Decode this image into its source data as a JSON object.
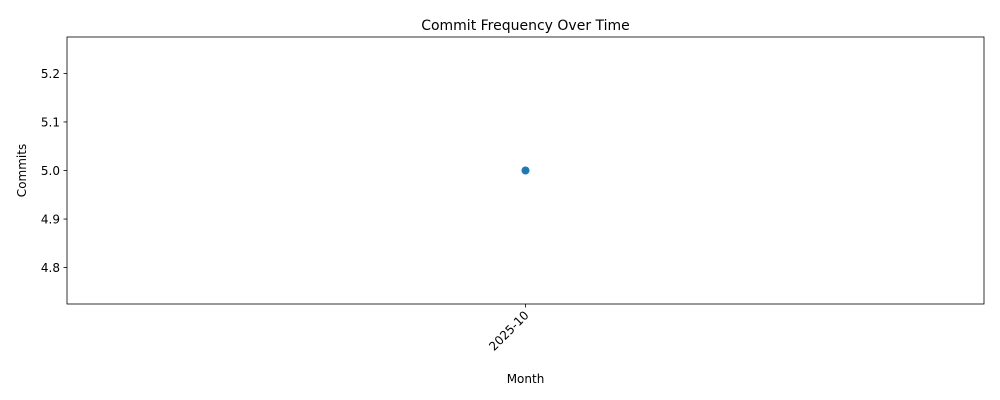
{
  "chart_data": {
    "type": "line",
    "title": "Commit Frequency Over Time",
    "xlabel": "Month",
    "ylabel": "Commits",
    "categories": [
      "2025-10"
    ],
    "series": [
      {
        "values": [
          5
        ],
        "color": "#1f77b4"
      }
    ],
    "ylim": [
      4.725,
      5.275
    ],
    "yticks": [
      4.8,
      4.9,
      5.0,
      5.1,
      5.2
    ],
    "ytick_labels": [
      "4.8",
      "4.9",
      "5.0",
      "5.1",
      "5.2"
    ],
    "xtick_rotation_deg": 45,
    "grid": false,
    "legend": "none"
  }
}
